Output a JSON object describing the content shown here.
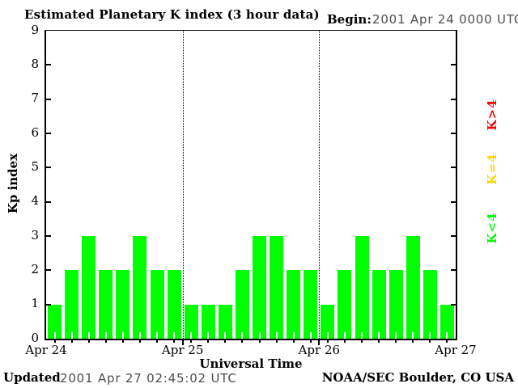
{
  "header": {
    "title": "Estimated Planetary K index (3 hour data)",
    "begin_label": "Begin:",
    "begin_value": "2001 Apr 24 0000 UTC"
  },
  "footer": {
    "updated_label": "Updated",
    "updated_value": "2001 Apr 27 02:45:02 UTC",
    "credit": "NOAA/SEC Boulder, CO USA"
  },
  "chart_data": {
    "type": "bar",
    "title": "Estimated Planetary K index (3 hour data)",
    "xlabel": "Universal Time",
    "ylabel": "Kp index",
    "ylim": [
      0,
      9
    ],
    "y_ticks": [
      0,
      1,
      2,
      3,
      4,
      5,
      6,
      7,
      8,
      9
    ],
    "x_tick_labels": [
      "Apr 24",
      "Apr 25",
      "Apr 26",
      "Apr 27"
    ],
    "interval_hours": 3,
    "bars_per_day": 8,
    "series": [
      {
        "name": "Apr 24",
        "values": [
          1,
          2,
          3,
          2,
          2,
          3,
          2,
          2
        ]
      },
      {
        "name": "Apr 25",
        "values": [
          1,
          1,
          1,
          2,
          3,
          3,
          2,
          2
        ]
      },
      {
        "name": "Apr 26",
        "values": [
          1,
          2,
          3,
          2,
          2,
          3,
          2,
          1
        ]
      }
    ],
    "legend": [
      {
        "label": "K<4",
        "color": "#00ff00"
      },
      {
        "label": "K=4",
        "color": "#ffd700"
      },
      {
        "label": "K>4",
        "color": "#ff0000"
      }
    ],
    "legend_position": "right-rotated",
    "grid": "vertical dotted lines at day boundaries",
    "colors": {
      "k_lt_4": "#00ff00",
      "k_eq_4": "#ffd700",
      "k_gt_4": "#ff0000",
      "axis": "#000000",
      "background": "#ffffff"
    }
  }
}
